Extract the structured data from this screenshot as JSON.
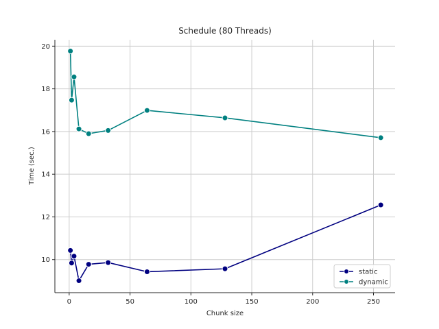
{
  "chart_data": {
    "type": "line",
    "title": "Schedule (80 Threads)",
    "xlabel": "Chunk size",
    "ylabel": "Time (sec.)",
    "xlim": [
      -11.75,
      267.75
    ],
    "ylim": [
      8.45,
      20.3
    ],
    "xticks": [
      0,
      50,
      100,
      150,
      200,
      250
    ],
    "yticks": [
      10,
      12,
      14,
      16,
      18,
      20
    ],
    "grid": true,
    "legend_position": "lower-right",
    "x": [
      1,
      2,
      4,
      8,
      16,
      32,
      64,
      128,
      256
    ],
    "series": [
      {
        "name": "static",
        "color": "#000080",
        "values": [
          10.43,
          9.84,
          10.16,
          9.01,
          9.78,
          9.86,
          9.43,
          9.57,
          12.56
        ]
      },
      {
        "name": "dynamic",
        "color": "#008080",
        "values": [
          19.77,
          17.47,
          18.56,
          16.12,
          15.9,
          16.05,
          16.99,
          16.64,
          15.71
        ]
      }
    ]
  }
}
